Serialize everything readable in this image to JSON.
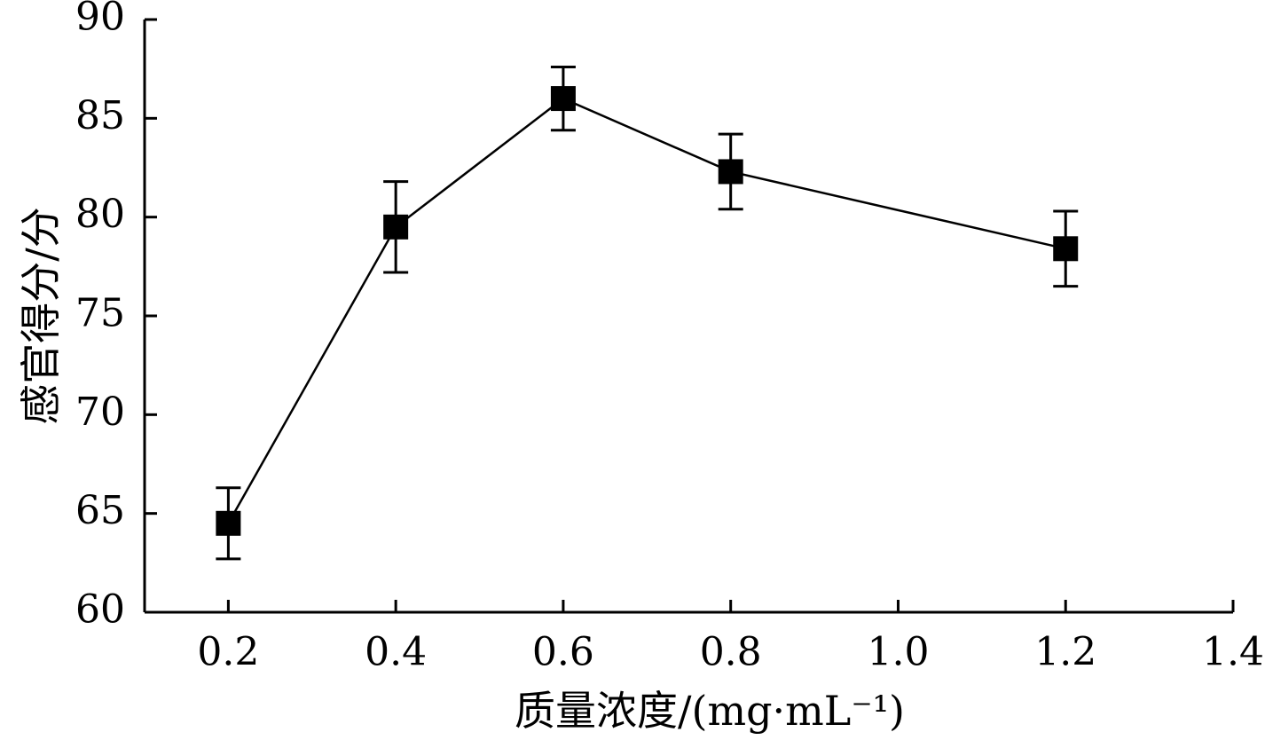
{
  "chart_data": {
    "type": "line",
    "xlabel": "质量浓度/(mg·mL⁻¹)",
    "ylabel": "感官得分/分",
    "xlim": [
      0.1,
      1.4
    ],
    "ylim": [
      60,
      90
    ],
    "x_ticks": [
      "0.2",
      "0.4",
      "0.6",
      "0.8",
      "1.0",
      "1.2",
      "1.4"
    ],
    "y_ticks": [
      "60",
      "65",
      "70",
      "75",
      "80",
      "85",
      "90"
    ],
    "grid": false,
    "series": [
      {
        "x": [
          0.2,
          0.4,
          0.6,
          0.8,
          1.2
        ],
        "y": [
          64.5,
          79.5,
          86.0,
          82.3,
          78.4
        ],
        "error": [
          1.8,
          2.3,
          1.6,
          1.9,
          1.9
        ],
        "color": "#000000",
        "marker": "square"
      }
    ]
  }
}
